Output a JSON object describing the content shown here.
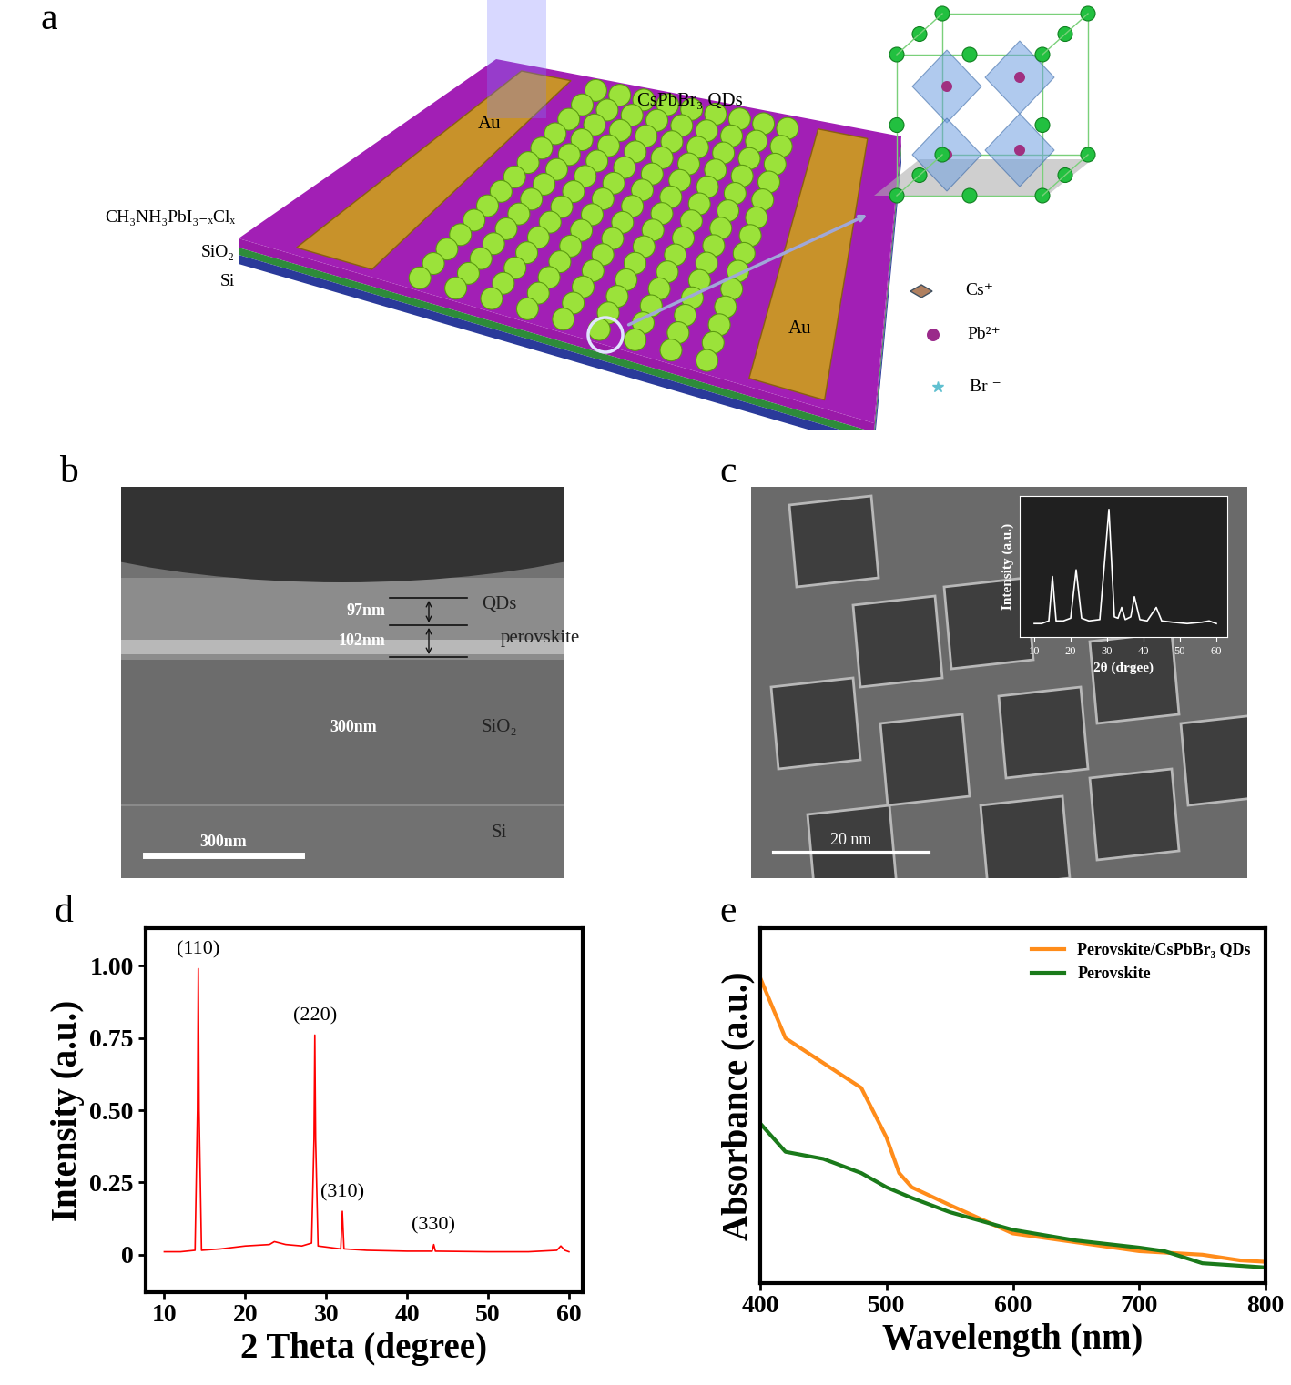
{
  "chart_data": [
    {
      "type": "line",
      "x_label": "2θ (drgee)",
      "y_label": "Intensity (a.u.)",
      "x": [
        10,
        12,
        14,
        15,
        16,
        18,
        20,
        21.5,
        23,
        25,
        28,
        30.5,
        32,
        33,
        34,
        35,
        36.5,
        37.5,
        39,
        41,
        43.5,
        45,
        48,
        52,
        56,
        58,
        60
      ],
      "values": [
        0.1,
        0.1,
        0.12,
        0.45,
        0.12,
        0.12,
        0.14,
        0.5,
        0.14,
        0.12,
        0.13,
        0.95,
        0.15,
        0.14,
        0.22,
        0.13,
        0.15,
        0.3,
        0.13,
        0.12,
        0.22,
        0.12,
        0.11,
        0.1,
        0.11,
        0.12,
        0.1
      ],
      "xlim": [
        6,
        63
      ],
      "xticks": [
        10,
        20,
        30,
        40,
        50,
        60
      ],
      "ylim": [
        0,
        1.05
      ],
      "tick_labels": "x",
      "color": "#ffffff"
    },
    {
      "panel": "d",
      "type": "line",
      "x_label": "2 Theta (degree)",
      "y_label": "Intensity (a.u.)",
      "x": [
        10,
        12,
        13.8,
        14.1,
        14.2,
        14.3,
        14.6,
        17,
        20,
        23,
        23.6,
        25,
        27,
        28.2,
        28.5,
        28.6,
        28.7,
        29,
        31.8,
        32,
        32.2,
        35,
        40,
        43.1,
        43.3,
        43.5,
        50,
        55,
        58.5,
        59,
        59.5,
        60
      ],
      "values": [
        0.01,
        0.01,
        0.015,
        0.5,
        0.99,
        0.5,
        0.015,
        0.02,
        0.03,
        0.035,
        0.045,
        0.035,
        0.03,
        0.04,
        0.4,
        0.76,
        0.4,
        0.03,
        0.02,
        0.15,
        0.02,
        0.015,
        0.012,
        0.012,
        0.035,
        0.012,
        0.01,
        0.01,
        0.015,
        0.03,
        0.015,
        0.01
      ],
      "color": "#ff0000",
      "xlim": [
        7.7,
        61.7
      ],
      "xticks": [
        10,
        20,
        30,
        40,
        50,
        60
      ],
      "ylim": [
        -0.13,
        1.13
      ],
      "yticks": [
        0,
        {
          "value": 0.25,
          "label": "0.25"
        },
        {
          "value": 0.5,
          "label": "0.50"
        },
        {
          "value": 0.75,
          "label": "0.75"
        },
        {
          "value": 1.0,
          "label": "1.00"
        }
      ],
      "annotations": [
        {
          "text": "(110)",
          "x": 14.2,
          "y": 0.99
        },
        {
          "text": "(220)",
          "x": 28.6,
          "y": 0.76
        },
        {
          "text": "(310)",
          "x": 32,
          "y": 0.15
        },
        {
          "text": "(330)",
          "x": 43.3,
          "y": 0.035
        }
      ]
    },
    {
      "panel": "e",
      "type": "line",
      "x_label": "Wavelength (nm)",
      "y_label": "Absorbance (a.u.)",
      "xlim": [
        400,
        800
      ],
      "xticks": [
        400,
        500,
        600,
        700,
        800
      ],
      "ylim": [
        0,
        1
      ],
      "tick_labels": "x",
      "legend": "upper right",
      "series": [
        {
          "name": "Perovskite/CsPbBr₃ QDs",
          "color": "#ff8c1a",
          "x": [
            400,
            420,
            450,
            480,
            500,
            510,
            520,
            550,
            600,
            650,
            700,
            750,
            780,
            800
          ],
          "values": [
            0.86,
            0.69,
            0.62,
            0.55,
            0.41,
            0.31,
            0.27,
            0.22,
            0.14,
            0.115,
            0.09,
            0.08,
            0.064,
            0.06
          ]
        },
        {
          "name": "Perovskite",
          "color": "#1a7a1a",
          "x": [
            400,
            420,
            450,
            480,
            500,
            520,
            550,
            600,
            650,
            700,
            720,
            750,
            800
          ],
          "values": [
            0.45,
            0.37,
            0.35,
            0.31,
            0.27,
            0.24,
            0.2,
            0.15,
            0.12,
            0.1,
            0.09,
            0.056,
            0.044
          ]
        }
      ]
    }
  ],
  "schematic": {
    "panel": "a",
    "qd_label": "CsPbBr₃ QDs",
    "electrodes": [
      "Au",
      "Au"
    ],
    "layers": [
      "CH₃NH₃PbI₃₋ₓClₓ",
      "SiO₂",
      "Si"
    ],
    "ions": [
      "Cs⁺",
      "Pb²⁺",
      "Br ⁻"
    ]
  },
  "sem": {
    "panel": "b",
    "thickness_labels": [
      "97nm",
      "102nm",
      "300nm"
    ],
    "layer_labels": [
      "QDs",
      "perovskite",
      "SiO₂",
      "Si"
    ],
    "scale_bar": "300nm"
  },
  "tem": {
    "panel": "c",
    "scale_bar": "20 nm"
  }
}
